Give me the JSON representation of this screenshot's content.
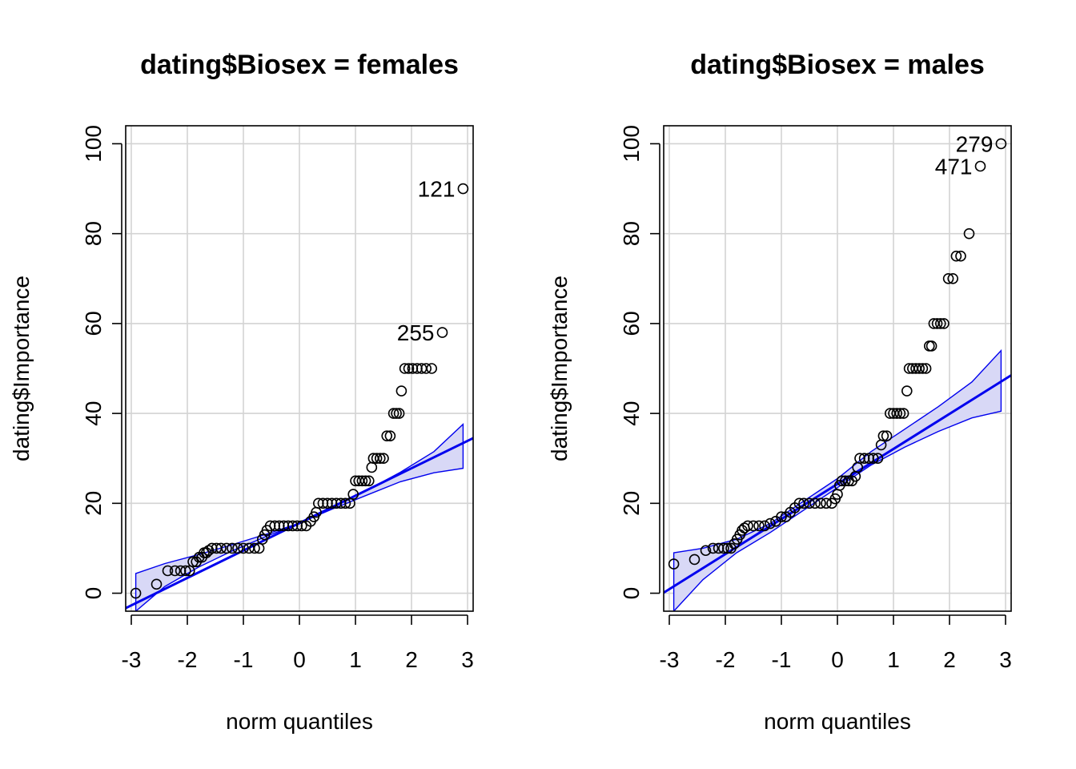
{
  "chart_data": [
    {
      "type": "scatter",
      "title": "dating$Biosex = females",
      "xlabel": "norm quantiles",
      "ylabel": "dating$Importance",
      "xlim": [
        -3.1,
        3.1
      ],
      "ylim": [
        -4,
        104
      ],
      "xticks": [
        "-3",
        "-2",
        "-1",
        "0",
        "1",
        "2",
        "3"
      ],
      "yticks": [
        "0",
        "20",
        "40",
        "60",
        "80",
        "100"
      ],
      "grid": true,
      "reference_line": {
        "intercept": 15.6,
        "slope": 6.1
      },
      "envelope": {
        "x": [
          -2.92,
          -2.4,
          -1.8,
          -1.2,
          -0.6,
          0,
          0.6,
          1.2,
          1.8,
          2.4,
          2.92
        ],
        "lower": [
          -4,
          1.5,
          5.8,
          9.4,
          12.6,
          15.6,
          18.8,
          21.8,
          24.8,
          26.8,
          27.8
        ],
        "upper": [
          4.4,
          6.6,
          8.6,
          10.8,
          13.1,
          15.6,
          19.1,
          22.9,
          26.9,
          31.5,
          37.6
        ]
      },
      "points": [
        [
          -2.92,
          0
        ],
        [
          -2.55,
          2
        ],
        [
          -2.35,
          5
        ],
        [
          -2.22,
          5
        ],
        [
          -2.12,
          5
        ],
        [
          -2.03,
          5
        ],
        [
          -1.96,
          5
        ],
        [
          -1.9,
          7
        ],
        [
          -1.84,
          7
        ],
        [
          -1.79,
          8
        ],
        [
          -1.74,
          8
        ],
        [
          -1.7,
          9
        ],
        [
          -1.66,
          9
        ],
        [
          -1.62,
          9.5
        ],
        [
          -1.56,
          10
        ],
        [
          -1.48,
          10
        ],
        [
          -1.4,
          10
        ],
        [
          -1.3,
          10
        ],
        [
          -1.2,
          10
        ],
        [
          -1.1,
          10
        ],
        [
          -1.0,
          10
        ],
        [
          -0.9,
          10
        ],
        [
          -0.8,
          10
        ],
        [
          -0.72,
          10
        ],
        [
          -0.66,
          12
        ],
        [
          -0.62,
          13
        ],
        [
          -0.58,
          14
        ],
        [
          -0.52,
          15
        ],
        [
          -0.44,
          15
        ],
        [
          -0.36,
          15
        ],
        [
          -0.28,
          15
        ],
        [
          -0.2,
          15
        ],
        [
          -0.12,
          15
        ],
        [
          -0.04,
          15
        ],
        [
          0.04,
          15
        ],
        [
          0.12,
          15
        ],
        [
          0.2,
          16
        ],
        [
          0.26,
          17
        ],
        [
          0.3,
          18
        ],
        [
          0.34,
          20
        ],
        [
          0.42,
          20
        ],
        [
          0.5,
          20
        ],
        [
          0.58,
          20
        ],
        [
          0.66,
          20
        ],
        [
          0.74,
          20
        ],
        [
          0.82,
          20
        ],
        [
          0.9,
          20
        ],
        [
          0.96,
          22
        ],
        [
          1.0,
          25
        ],
        [
          1.06,
          25
        ],
        [
          1.12,
          25
        ],
        [
          1.18,
          25
        ],
        [
          1.24,
          25
        ],
        [
          1.29,
          28
        ],
        [
          1.32,
          30
        ],
        [
          1.38,
          30
        ],
        [
          1.44,
          30
        ],
        [
          1.5,
          30
        ],
        [
          1.56,
          35
        ],
        [
          1.62,
          35
        ],
        [
          1.68,
          40
        ],
        [
          1.73,
          40
        ],
        [
          1.78,
          40
        ],
        [
          1.82,
          45
        ],
        [
          1.88,
          50
        ],
        [
          1.95,
          50
        ],
        [
          2.02,
          50
        ],
        [
          2.1,
          50
        ],
        [
          2.18,
          50
        ],
        [
          2.26,
          50
        ],
        [
          2.36,
          50
        ],
        [
          2.55,
          58
        ],
        [
          2.92,
          90
        ]
      ],
      "labels": [
        {
          "text": "121",
          "x": 2.92,
          "y": 90
        },
        {
          "text": "255",
          "x": 2.55,
          "y": 58
        }
      ]
    },
    {
      "type": "scatter",
      "title": "dating$Biosex = males",
      "xlabel": "norm quantiles",
      "ylabel": "dating$Importance",
      "xlim": [
        -3.1,
        3.1
      ],
      "ylim": [
        -4,
        104
      ],
      "xticks": [
        "-3",
        "-2",
        "-1",
        "0",
        "1",
        "2",
        "3"
      ],
      "yticks": [
        "0",
        "20",
        "40",
        "60",
        "80",
        "100"
      ],
      "grid": true,
      "reference_line": {
        "intercept": 24.3,
        "slope": 7.8
      },
      "envelope": {
        "x": [
          -2.92,
          -2.4,
          -1.8,
          -1.2,
          -0.6,
          0,
          0.6,
          1.2,
          1.8,
          2.4,
          2.92
        ],
        "lower": [
          -4,
          3,
          9,
          13.5,
          18.5,
          23.5,
          28.5,
          32.5,
          36,
          39,
          40.5
        ],
        "upper": [
          9,
          10,
          12,
          15.5,
          20.5,
          25.5,
          31.5,
          36.5,
          41.5,
          47,
          54
        ]
      },
      "points": [
        [
          -2.92,
          6.5
        ],
        [
          -2.55,
          7.5
        ],
        [
          -2.35,
          9.5
        ],
        [
          -2.22,
          10
        ],
        [
          -2.12,
          10
        ],
        [
          -2.03,
          10
        ],
        [
          -1.96,
          10
        ],
        [
          -1.9,
          10
        ],
        [
          -1.84,
          11
        ],
        [
          -1.79,
          12
        ],
        [
          -1.74,
          13
        ],
        [
          -1.7,
          14
        ],
        [
          -1.66,
          14.5
        ],
        [
          -1.6,
          15
        ],
        [
          -1.5,
          15
        ],
        [
          -1.4,
          15
        ],
        [
          -1.3,
          15
        ],
        [
          -1.2,
          15.5
        ],
        [
          -1.1,
          16
        ],
        [
          -1.0,
          17
        ],
        [
          -0.92,
          17
        ],
        [
          -0.84,
          18
        ],
        [
          -0.76,
          19
        ],
        [
          -0.68,
          20
        ],
        [
          -0.6,
          20
        ],
        [
          -0.5,
          20
        ],
        [
          -0.4,
          20
        ],
        [
          -0.3,
          20
        ],
        [
          -0.2,
          20
        ],
        [
          -0.1,
          20
        ],
        [
          -0.04,
          21
        ],
        [
          0.0,
          22
        ],
        [
          0.04,
          24
        ],
        [
          0.08,
          25
        ],
        [
          0.14,
          25
        ],
        [
          0.2,
          25
        ],
        [
          0.26,
          25
        ],
        [
          0.32,
          26
        ],
        [
          0.36,
          28
        ],
        [
          0.4,
          30
        ],
        [
          0.48,
          30
        ],
        [
          0.56,
          30
        ],
        [
          0.64,
          30
        ],
        [
          0.72,
          30
        ],
        [
          0.78,
          33
        ],
        [
          0.82,
          35
        ],
        [
          0.88,
          35
        ],
        [
          0.94,
          40
        ],
        [
          1.0,
          40
        ],
        [
          1.06,
          40
        ],
        [
          1.12,
          40
        ],
        [
          1.18,
          40
        ],
        [
          1.24,
          45
        ],
        [
          1.28,
          50
        ],
        [
          1.34,
          50
        ],
        [
          1.4,
          50
        ],
        [
          1.46,
          50
        ],
        [
          1.52,
          50
        ],
        [
          1.58,
          50
        ],
        [
          1.64,
          55
        ],
        [
          1.68,
          55
        ],
        [
          1.72,
          60
        ],
        [
          1.78,
          60
        ],
        [
          1.84,
          60
        ],
        [
          1.9,
          60
        ],
        [
          1.98,
          70
        ],
        [
          2.06,
          70
        ],
        [
          2.12,
          75
        ],
        [
          2.2,
          75
        ],
        [
          2.35,
          80
        ],
        [
          2.55,
          95
        ],
        [
          2.92,
          100
        ]
      ],
      "labels": [
        {
          "text": "279",
          "x": 2.92,
          "y": 100
        },
        {
          "text": "471",
          "x": 2.55,
          "y": 95
        }
      ]
    }
  ],
  "colors": {
    "line": "#0000ee",
    "band_fill": "#d8d8f6",
    "grid": "#d3d3d3",
    "points": "#000000"
  }
}
